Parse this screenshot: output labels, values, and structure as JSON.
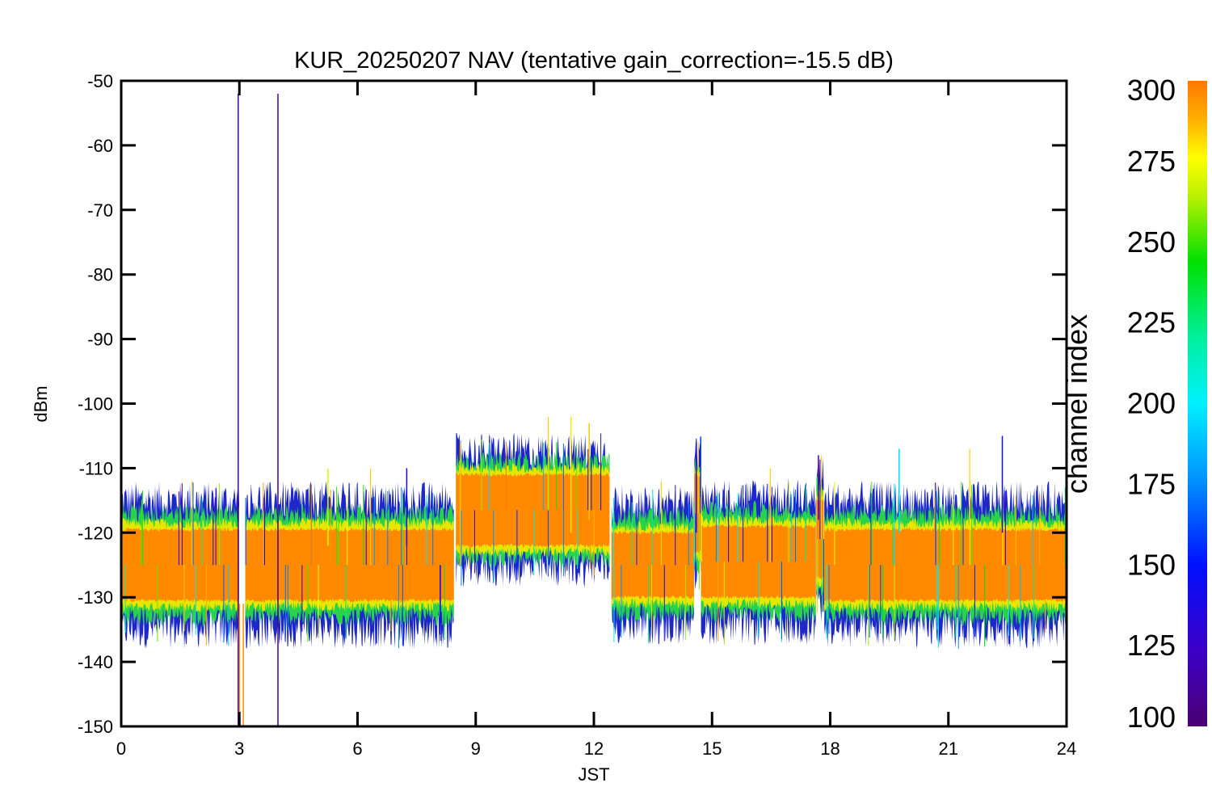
{
  "chart_data": {
    "type": "line",
    "title": "KUR_20250207 NAV (tentative gain_correction=-15.5 dB)",
    "xlabel": "JST",
    "ylabel": "dBm",
    "xlim": [
      0,
      24
    ],
    "ylim": [
      -150,
      -50
    ],
    "xticks": [
      "0",
      "3",
      "6",
      "9",
      "12",
      "15",
      "18",
      "21",
      "24"
    ],
    "yticks": [
      "-50",
      "-60",
      "-70",
      "-80",
      "-90",
      "-100",
      "-110",
      "-120",
      "-130",
      "-140",
      "-150"
    ],
    "colorbar": {
      "label": "channel index",
      "range": [
        100,
        300
      ],
      "ticks": [
        "300",
        "275",
        "250",
        "225",
        "200",
        "175",
        "150",
        "125",
        "100"
      ],
      "colormap": "rainbow"
    },
    "grid": false,
    "band_segments": [
      {
        "x0": 0.0,
        "x1": 3.0,
        "center": -125,
        "orange_half": 5.5,
        "yellow_half": 6.5,
        "green_half": 8.0,
        "outer_half": 10.0,
        "max_spike": -112
      },
      {
        "x0": 3.15,
        "x1": 8.45,
        "center": -125,
        "orange_half": 5.5,
        "yellow_half": 6.5,
        "green_half": 8.0,
        "outer_half": 10.0,
        "max_spike": -110
      },
      {
        "x0": 8.5,
        "x1": 12.4,
        "center": -116.5,
        "orange_half": 5.5,
        "yellow_half": 6.5,
        "green_half": 7.5,
        "outer_half": 9.0,
        "max_spike": -102
      },
      {
        "x0": 12.45,
        "x1": 14.55,
        "center": -125,
        "orange_half": 5.0,
        "yellow_half": 6.0,
        "green_half": 7.5,
        "outer_half": 9.5,
        "max_spike": -112
      },
      {
        "x0": 14.55,
        "x1": 14.72,
        "center": -117,
        "orange_half": 6.0,
        "yellow_half": 7.0,
        "green_half": 8.0,
        "outer_half": 9.0,
        "max_spike": -106
      },
      {
        "x0": 14.72,
        "x1": 17.65,
        "center": -124.5,
        "orange_half": 5.5,
        "yellow_half": 6.5,
        "green_half": 8.0,
        "outer_half": 10.0,
        "max_spike": -110
      },
      {
        "x0": 17.65,
        "x1": 17.85,
        "center": -121,
        "orange_half": 6.0,
        "yellow_half": 7.0,
        "green_half": 8.5,
        "outer_half": 10.0,
        "max_spike": -108
      },
      {
        "x0": 17.85,
        "x1": 24.0,
        "center": -125,
        "orange_half": 5.5,
        "yellow_half": 6.5,
        "green_half": 8.0,
        "outer_half": 10.0,
        "max_spike": -107
      }
    ],
    "spikes": [
      {
        "x": 2.97,
        "y0": -150,
        "y1": -52,
        "channel": 110
      },
      {
        "x": 3.98,
        "y0": -150,
        "y1": -52,
        "channel": 110
      },
      {
        "x": 3.0,
        "y0": -150,
        "y1": -131,
        "channel": 295
      },
      {
        "x": 3.1,
        "y0": -150,
        "y1": -131,
        "channel": 295
      },
      {
        "x": 8.61,
        "y0": -125,
        "y1": -106,
        "channel": 285
      },
      {
        "x": 11.42,
        "y0": -120,
        "y1": -102,
        "channel": 280
      },
      {
        "x": 11.88,
        "y0": -118,
        "y1": -103,
        "channel": 285
      },
      {
        "x": 14.6,
        "y0": -120,
        "y1": -106,
        "channel": 140
      },
      {
        "x": 17.7,
        "y0": -118,
        "y1": -108,
        "channel": 110
      },
      {
        "x": 19.75,
        "y0": -120,
        "y1": -107,
        "channel": 195
      },
      {
        "x": 22.37,
        "y0": -120,
        "y1": -105,
        "channel": 140
      },
      {
        "x": 5.25,
        "y0": -122,
        "y1": -110,
        "channel": 270
      },
      {
        "x": 7.25,
        "y0": -122,
        "y1": -110,
        "channel": 140
      }
    ]
  }
}
